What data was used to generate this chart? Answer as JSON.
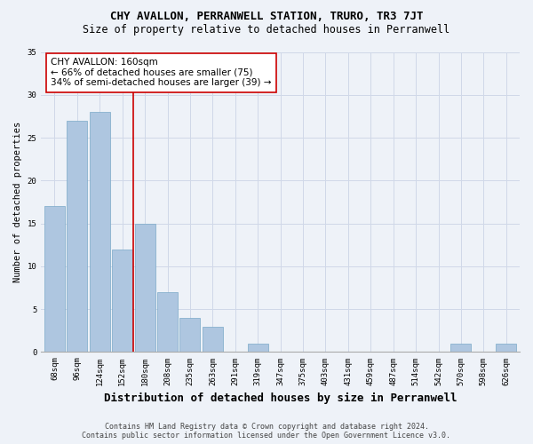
{
  "title": "CHY AVALLON, PERRANWELL STATION, TRURO, TR3 7JT",
  "subtitle": "Size of property relative to detached houses in Perranwell",
  "xlabel": "Distribution of detached houses by size in Perranwell",
  "ylabel": "Number of detached properties",
  "bin_labels": [
    "68sqm",
    "96sqm",
    "124sqm",
    "152sqm",
    "180sqm",
    "208sqm",
    "235sqm",
    "263sqm",
    "291sqm",
    "319sqm",
    "347sqm",
    "375sqm",
    "403sqm",
    "431sqm",
    "459sqm",
    "487sqm",
    "514sqm",
    "542sqm",
    "570sqm",
    "598sqm",
    "626sqm"
  ],
  "bar_heights": [
    17,
    27,
    28,
    12,
    15,
    7,
    4,
    3,
    0,
    1,
    0,
    0,
    0,
    0,
    0,
    0,
    0,
    0,
    1,
    0,
    1
  ],
  "bar_color": "#aec6e0",
  "bar_edge_color": "#7aaac8",
  "grid_color": "#d0d8e8",
  "vline_x": 3.5,
  "vline_color": "#cc0000",
  "annotation_text": "CHY AVALLON: 160sqm\n← 66% of detached houses are smaller (75)\n34% of semi-detached houses are larger (39) →",
  "annotation_box_color": "#ffffff",
  "annotation_box_edge": "#cc0000",
  "ylim": [
    0,
    35
  ],
  "yticks": [
    0,
    5,
    10,
    15,
    20,
    25,
    30,
    35
  ],
  "footer_line1": "Contains HM Land Registry data © Crown copyright and database right 2024.",
  "footer_line2": "Contains public sector information licensed under the Open Government Licence v3.0.",
  "title_fontsize": 9,
  "subtitle_fontsize": 8.5,
  "xlabel_fontsize": 9,
  "ylabel_fontsize": 7.5,
  "tick_fontsize": 6.5,
  "footer_fontsize": 6,
  "annotation_fontsize": 7.5,
  "background_color": "#eef2f8"
}
